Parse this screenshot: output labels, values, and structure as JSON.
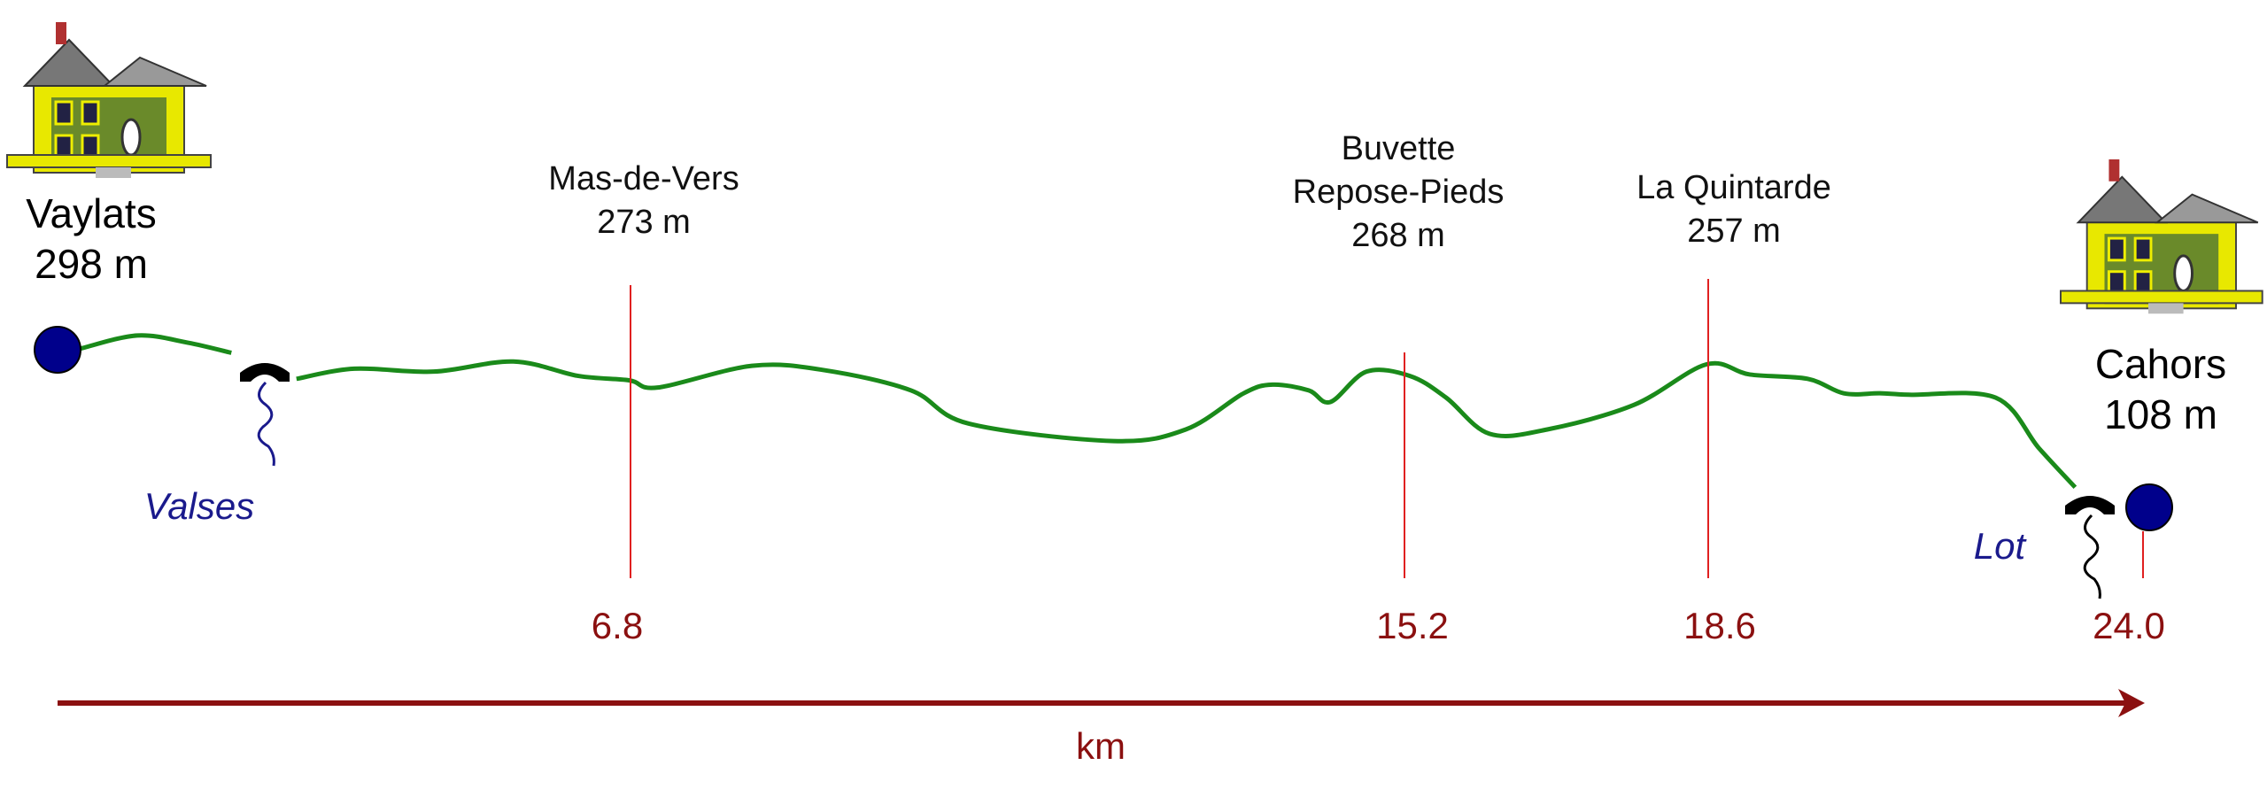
{
  "endpoints": [
    {
      "name": "Vaylats",
      "elevation": "298 m"
    },
    {
      "name": "Cahors",
      "elevation": "108 m"
    }
  ],
  "waypoints": [
    {
      "lines": [
        "Mas-de-Vers",
        "273 m"
      ],
      "km": "6.8"
    },
    {
      "lines": [
        "Buvette",
        "Repose-Pieds",
        "268 m"
      ],
      "km": "15.2"
    },
    {
      "lines": [
        "La Quintarde",
        "257 m"
      ],
      "km": "18.6"
    }
  ],
  "end_km": "24.0",
  "rivers": [
    "Valses",
    "Lot"
  ],
  "axis_label": "km"
}
